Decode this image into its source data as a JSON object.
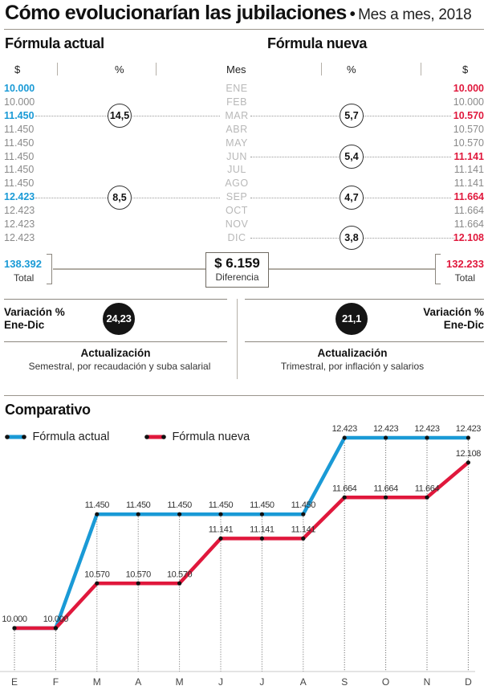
{
  "header": {
    "title": "Cómo evolucionarían las jubilaciones",
    "bullet": "•",
    "subtitle": "Mes a mes, 2018"
  },
  "table": {
    "left_title": "Fórmula actual",
    "right_title": "Fórmula nueva",
    "columns": [
      "$",
      "%",
      "Mes",
      "%",
      "$"
    ],
    "colors": {
      "actual": "#1a9ad6",
      "nueva": "#e0183c",
      "muted": "#8a8a8a"
    },
    "rows": [
      {
        "mes": "ENE",
        "actual": "10.000",
        "actual_hl": true,
        "nueva": "10.000",
        "nueva_hl": true
      },
      {
        "mes": "FEB",
        "actual": "10.000",
        "actual_hl": false,
        "nueva": "10.000",
        "nueva_hl": false
      },
      {
        "mes": "MAR",
        "actual": "11.450",
        "actual_hl": true,
        "nueva": "10.570",
        "nueva_hl": true,
        "actual_pct": "14,5",
        "nueva_pct": "5,7"
      },
      {
        "mes": "ABR",
        "actual": "11.450",
        "actual_hl": false,
        "nueva": "10.570",
        "nueva_hl": false
      },
      {
        "mes": "MAY",
        "actual": "11.450",
        "actual_hl": false,
        "nueva": "10.570",
        "nueva_hl": false
      },
      {
        "mes": "JUN",
        "actual": "11.450",
        "actual_hl": false,
        "nueva": "11.141",
        "nueva_hl": true,
        "nueva_pct": "5,4"
      },
      {
        "mes": "JUL",
        "actual": "11.450",
        "actual_hl": false,
        "nueva": "11.141",
        "nueva_hl": false
      },
      {
        "mes": "AGO",
        "actual": "11.450",
        "actual_hl": false,
        "nueva": "11.141",
        "nueva_hl": false
      },
      {
        "mes": "SEP",
        "actual": "12.423",
        "actual_hl": true,
        "nueva": "11.664",
        "nueva_hl": true,
        "actual_pct": "8,5",
        "nueva_pct": "4,7"
      },
      {
        "mes": "OCT",
        "actual": "12.423",
        "actual_hl": false,
        "nueva": "11.664",
        "nueva_hl": false
      },
      {
        "mes": "NOV",
        "actual": "12.423",
        "actual_hl": false,
        "nueva": "11.664",
        "nueva_hl": false
      },
      {
        "mes": "DIC",
        "actual": "12.423",
        "actual_hl": false,
        "nueva": "12.108",
        "nueva_hl": true,
        "nueva_pct": "3,8"
      }
    ],
    "totals": {
      "actual_value": "138.392",
      "actual_label": "Total",
      "nueva_value": "132.233",
      "nueva_label": "Total",
      "diff_value": "$ 6.159",
      "diff_label": "Diferencia"
    }
  },
  "summary": {
    "left": {
      "variation_label_1": "Variación %",
      "variation_label_2": "Ene-Dic",
      "variation_value": "24,23",
      "update_title": "Actualización",
      "update_desc": "Semestral, por recaudación y suba salarial"
    },
    "right": {
      "variation_label_1": "Variación %",
      "variation_label_2": "Ene-Dic",
      "variation_value": "21,1",
      "update_title": "Actualización",
      "update_desc": "Trimestral, por inflación y salarios"
    }
  },
  "chart_data": {
    "type": "line",
    "title": "Comparativo",
    "categories": [
      "E",
      "F",
      "M",
      "A",
      "M",
      "J",
      "J",
      "A",
      "S",
      "O",
      "N",
      "D"
    ],
    "series": [
      {
        "name": "Fórmula actual",
        "color": "#1a9ad6",
        "values": [
          10000,
          10000,
          11450,
          11450,
          11450,
          11450,
          11450,
          11450,
          12423,
          12423,
          12423,
          12423
        ],
        "labels": [
          "10.000",
          "10.000",
          "11.450",
          "11.450",
          "11.450",
          "11.450",
          "11.450",
          "11.450",
          "12.423",
          "12.423",
          "12.423",
          "12.423"
        ]
      },
      {
        "name": "Fórmula nueva",
        "color": "#e0183c",
        "values": [
          10000,
          10000,
          10570,
          10570,
          10570,
          11141,
          11141,
          11141,
          11664,
          11664,
          11664,
          12108
        ],
        "labels": [
          null,
          null,
          "10.570",
          "10.570",
          "10.570",
          "11.141",
          "11.141",
          "11.141",
          "11.664",
          "11.664",
          "11.664",
          "12.108"
        ]
      }
    ],
    "xlabel": "",
    "ylabel": "",
    "ylim": [
      9450,
      12423
    ],
    "grid": "vertical dotted lines at each month",
    "legend": "top-left"
  }
}
